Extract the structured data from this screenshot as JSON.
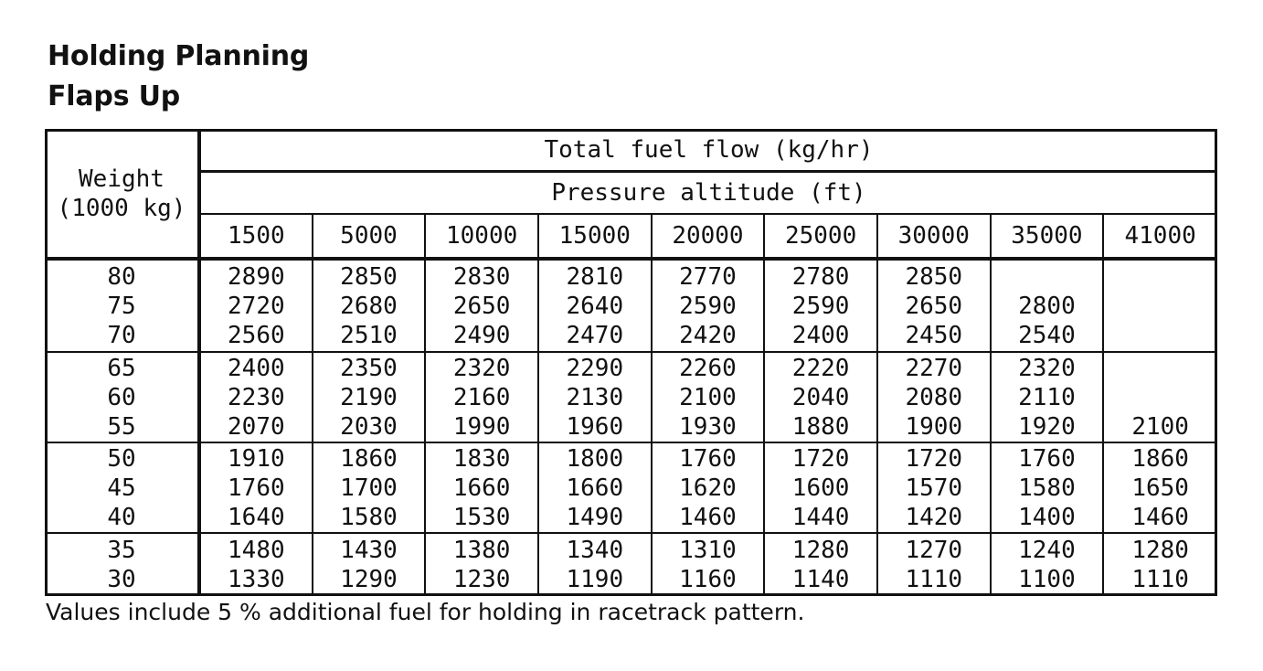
{
  "title": "Holding Planning",
  "subtitle": "Flaps Up",
  "header": {
    "weight_line1": "Weight",
    "weight_line2": "(1000 kg)",
    "fuel_flow": "Total fuel flow (kg/hr)",
    "pressure_altitude": "Pressure altitude (ft)",
    "altitudes": [
      "1500",
      "5000",
      "10000",
      "15000",
      "20000",
      "25000",
      "30000",
      "35000",
      "41000"
    ]
  },
  "groups": [
    {
      "weights": [
        "80",
        "75",
        "70"
      ],
      "columns": [
        [
          "2890",
          "2720",
          "2560"
        ],
        [
          "2850",
          "2680",
          "2510"
        ],
        [
          "2830",
          "2650",
          "2490"
        ],
        [
          "2810",
          "2640",
          "2470"
        ],
        [
          "2770",
          "2590",
          "2420"
        ],
        [
          "2780",
          "2590",
          "2400"
        ],
        [
          "2850",
          "2650",
          "2450"
        ],
        [
          "",
          "2800",
          "2540"
        ],
        [
          "",
          "",
          ""
        ]
      ]
    },
    {
      "weights": [
        "65",
        "60",
        "55"
      ],
      "columns": [
        [
          "2400",
          "2230",
          "2070"
        ],
        [
          "2350",
          "2190",
          "2030"
        ],
        [
          "2320",
          "2160",
          "1990"
        ],
        [
          "2290",
          "2130",
          "1960"
        ],
        [
          "2260",
          "2100",
          "1930"
        ],
        [
          "2220",
          "2040",
          "1880"
        ],
        [
          "2270",
          "2080",
          "1900"
        ],
        [
          "2320",
          "2110",
          "1920"
        ],
        [
          "",
          "",
          "2100"
        ]
      ]
    },
    {
      "weights": [
        "50",
        "45",
        "40"
      ],
      "columns": [
        [
          "1910",
          "1760",
          "1640"
        ],
        [
          "1860",
          "1700",
          "1580"
        ],
        [
          "1830",
          "1660",
          "1530"
        ],
        [
          "1800",
          "1660",
          "1490"
        ],
        [
          "1760",
          "1620",
          "1460"
        ],
        [
          "1720",
          "1600",
          "1440"
        ],
        [
          "1720",
          "1570",
          "1420"
        ],
        [
          "1760",
          "1580",
          "1400"
        ],
        [
          "1860",
          "1650",
          "1460"
        ]
      ]
    },
    {
      "weights": [
        "35",
        "30"
      ],
      "columns": [
        [
          "1480",
          "1330"
        ],
        [
          "1430",
          "1290"
        ],
        [
          "1380",
          "1230"
        ],
        [
          "1340",
          "1190"
        ],
        [
          "1310",
          "1160"
        ],
        [
          "1280",
          "1140"
        ],
        [
          "1270",
          "1110"
        ],
        [
          "1240",
          "1100"
        ],
        [
          "1280",
          "1110"
        ]
      ]
    }
  ],
  "footnote": "Values include 5 % additional fuel for holding in racetrack pattern."
}
